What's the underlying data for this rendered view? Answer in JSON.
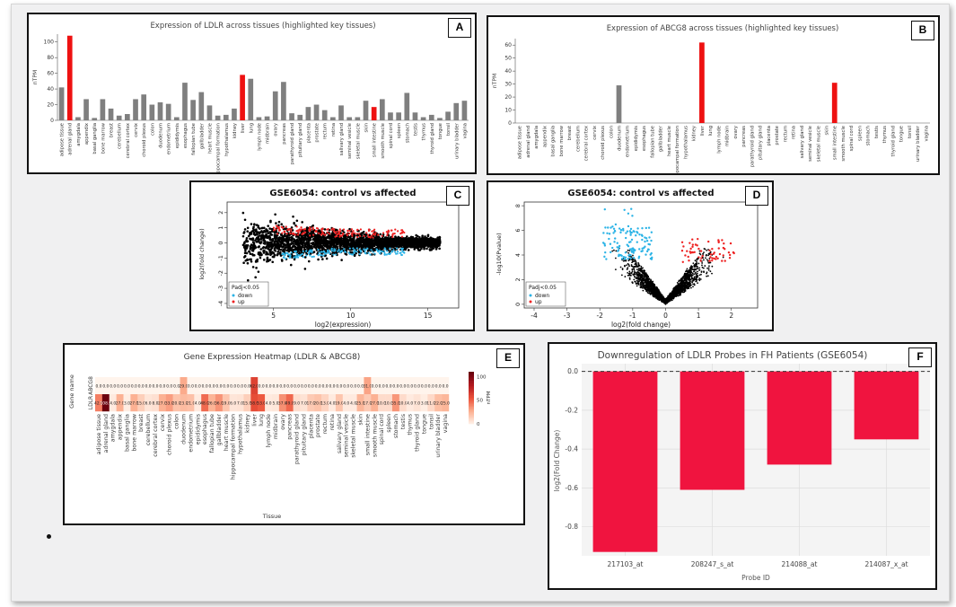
{
  "colors": {
    "highlight": "#ee1111",
    "grey": "#7f7f7f",
    "up": "#ee2222",
    "down": "#2bb3e6",
    "bar_red": "#f0143f"
  },
  "chart_data": [
    {
      "panel": "A",
      "type": "bar",
      "title": "Expression of LDLR across tissues (highlighted key tissues)",
      "xlabel": "",
      "ylabel": "nTPM",
      "ylim": [
        0,
        110
      ],
      "yticks": [
        0,
        20,
        40,
        60,
        80,
        100
      ],
      "highlight": [
        "adrenal gland",
        "liver",
        "small intestine"
      ],
      "categories": [
        "adipose tissue",
        "adrenal gland",
        "amygdala",
        "appendix",
        "basal ganglia",
        "bone marrow",
        "breast",
        "cerebellum",
        "cerebral cortex",
        "cervix",
        "choroid plexus",
        "colon",
        "duodenum",
        "endometrium",
        "epididymis",
        "esophagus",
        "fallopian tube",
        "gallbladder",
        "heart muscle",
        "hippocampal formation",
        "hypothalamus",
        "kidney",
        "liver",
        "lung",
        "lymph node",
        "midbrain",
        "ovary",
        "pancreas",
        "parathyroid gland",
        "pituitary gland",
        "placenta",
        "prostate",
        "rectum",
        "retina",
        "salivary gland",
        "seminal vesicle",
        "skeletal muscle",
        "skin",
        "small intestine",
        "smooth muscle",
        "spinal cord",
        "spleen",
        "stomach",
        "testis",
        "thymus",
        "thyroid gland",
        "tongue",
        "tonsil",
        "urinary bladder",
        "vagina"
      ],
      "values": [
        42,
        108,
        4,
        27,
        3,
        27,
        15,
        6,
        8,
        27,
        33,
        20,
        23,
        21,
        4,
        48,
        26,
        36,
        19,
        6,
        7,
        15,
        58,
        53,
        4,
        5,
        37,
        49,
        9,
        7,
        17,
        20,
        13,
        4,
        19,
        4,
        4,
        25,
        17,
        27,
        10,
        10,
        35,
        10,
        4,
        7,
        3,
        11,
        22,
        25
      ]
    },
    {
      "panel": "B",
      "type": "bar",
      "title": "Expression of ABCG8 across tissues (highlighted key tissues)",
      "xlabel": "",
      "ylabel": "nTPM",
      "ylim": [
        0,
        65
      ],
      "yticks": [
        0,
        10,
        20,
        30,
        40,
        50,
        60
      ],
      "highlight": [
        "liver",
        "small intestine"
      ],
      "categories": [
        "adipose tissue",
        "adrenal gland",
        "amygdala",
        "appendix",
        "basal ganglia",
        "bone marrow",
        "breast",
        "cerebellum",
        "cerebral cortex",
        "cervix",
        "choroid plexus",
        "colon",
        "duodenum",
        "endometrium",
        "epididymis",
        "esophagus",
        "fallopian tube",
        "gallbladder",
        "heart muscle",
        "hippocampal formation",
        "hypothalamus",
        "kidney",
        "liver",
        "lung",
        "lymph node",
        "midbrain",
        "ovary",
        "pancreas",
        "parathyroid gland",
        "pituitary gland",
        "placenta",
        "prostate",
        "rectum",
        "retina",
        "salivary gland",
        "seminal vesicle",
        "skeletal muscle",
        "skin",
        "small intestine",
        "smooth muscle",
        "spinal cord",
        "spleen",
        "stomach",
        "testis",
        "thymus",
        "thyroid gland",
        "tongue",
        "tonsil",
        "urinary bladder",
        "vagina"
      ],
      "values": [
        0,
        0,
        0,
        0,
        0,
        0,
        0,
        0,
        0,
        0,
        0,
        0,
        29,
        0,
        0,
        0,
        0,
        0,
        0,
        0,
        0,
        0,
        62,
        0,
        0,
        0,
        0,
        0,
        0,
        0,
        0,
        0,
        0,
        0,
        0,
        0,
        0,
        0,
        31,
        0,
        0,
        0,
        0,
        0,
        0,
        0,
        0,
        0,
        0,
        0
      ]
    },
    {
      "panel": "C",
      "type": "scatter",
      "title": "GSE6054: control vs affected",
      "xlabel": "log2(expression)",
      "ylabel": "log2(fold change)",
      "xlim": [
        2,
        17
      ],
      "ylim": [
        -4.3,
        2.7
      ],
      "xticks": [
        5,
        10,
        15
      ],
      "yticks": [
        -4,
        -3,
        -2,
        -1,
        0,
        1,
        2
      ],
      "legend": {
        "title": "Padj<0.05",
        "entries": [
          "down",
          "up"
        ],
        "position": "bottom-left"
      }
    },
    {
      "panel": "D",
      "type": "scatter",
      "title": "GSE6054: control vs affected",
      "xlabel": "log2(fold change)",
      "ylabel": "-log10(Pvalue)",
      "xlim": [
        -4.3,
        2.8
      ],
      "ylim": [
        -0.3,
        8.3
      ],
      "xticks": [
        -4,
        -3,
        -2,
        -1,
        0,
        1,
        2
      ],
      "yticks": [
        0,
        2,
        4,
        6,
        8
      ],
      "legend": {
        "title": "Padj<0.05",
        "entries": [
          "down",
          "up"
        ],
        "position": "bottom-left"
      }
    },
    {
      "panel": "E",
      "type": "heatmap",
      "title": "Gene Expression Heatmap (LDLR & ABCG8)",
      "xlabel": "Tissue",
      "ylabel": "Gene name",
      "rows": [
        "ABCG8",
        "LDLR"
      ],
      "colorbar": {
        "label": "nTPM",
        "ticks": [
          0,
          50,
          100
        ]
      },
      "categories": [
        "adipose tissue",
        "adrenal gland",
        "amygdala",
        "appendix",
        "basal ganglia",
        "bone marrow",
        "breast",
        "cerebellum",
        "cerebral cortex",
        "cervix",
        "choroid plexus",
        "colon",
        "duodenum",
        "endometrium",
        "epididymis",
        "esophagus",
        "fallopian tube",
        "gallbladder",
        "heart muscle",
        "hippocampal formation",
        "hypothalamus",
        "kidney",
        "liver",
        "lung",
        "lymph node",
        "midbrain",
        "ovary",
        "pancreas",
        "parathyroid gland",
        "pituitary gland",
        "placenta",
        "prostate",
        "rectum",
        "retina",
        "salivary gland",
        "seminal vesicle",
        "skeletal muscle",
        "skin",
        "small intestine",
        "smooth muscle",
        "spinal cord",
        "spleen",
        "stomach",
        "testis",
        "thymus",
        "thyroid gland",
        "tongue",
        "tonsil",
        "urinary bladder",
        "vagina"
      ],
      "values": [
        [
          0,
          0,
          0,
          0,
          0,
          0,
          0,
          0,
          0,
          0,
          0,
          0,
          29,
          0,
          0,
          0,
          0,
          0,
          0,
          0,
          0,
          0,
          62,
          0,
          0,
          0,
          0,
          0,
          0,
          0,
          0,
          0,
          0,
          0,
          0,
          0,
          0,
          0,
          31,
          0,
          0,
          0,
          0,
          0,
          0,
          0,
          0,
          0,
          0,
          0
        ],
        [
          42,
          108,
          4,
          27,
          3,
          27,
          15,
          6,
          8,
          27,
          33,
          20,
          23,
          21,
          4,
          48,
          26,
          36,
          19,
          6,
          7,
          15,
          58,
          53,
          4,
          5,
          37,
          49,
          9,
          7,
          17,
          20,
          13,
          4,
          19,
          4,
          4,
          25,
          17,
          27,
          10,
          10,
          35,
          10,
          4,
          7,
          3,
          11,
          22,
          25
        ]
      ]
    },
    {
      "panel": "F",
      "type": "bar",
      "title": "Downregulation of LDLR Probes in FH Patients (GSE6054)",
      "xlabel": "Probe ID",
      "ylabel": "log2(Fold Change)",
      "ylim": [
        -0.95,
        0.04
      ],
      "yticks": [
        0.0,
        -0.2,
        -0.4,
        -0.6,
        -0.8
      ],
      "categories": [
        "217103_at",
        "208247_s_at",
        "214088_at",
        "214087_x_at"
      ],
      "values": [
        -0.93,
        -0.61,
        -0.48,
        -0.35
      ]
    }
  ]
}
